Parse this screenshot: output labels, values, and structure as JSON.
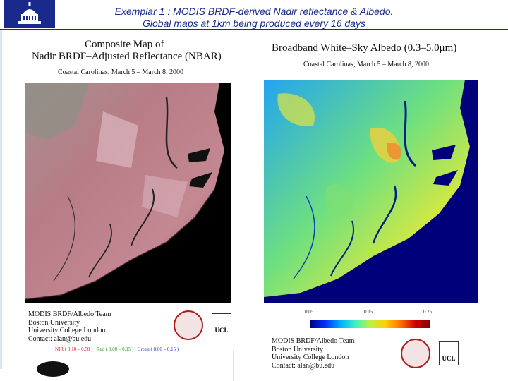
{
  "slide": {
    "title_line1": "Exemplar 1 : MODIS BRDF-derived Nadir reflectance & Albedo.",
    "title_line2": "Global maps at 1km being produced every 16 days"
  },
  "left_panel": {
    "title_line1": "Composite Map of",
    "title_line2": "Nadir BRDF–Adjusted Reflectance (NBAR)",
    "subtitle": "Coastal Carolinas, March 5 – March 8, 2000",
    "credits": [
      "MODIS BRDF/Albedo Team",
      "Boston University",
      "University College London",
      "Contact: alan@bu.edu"
    ],
    "bands": [
      {
        "label": "NIR ( 0.10 – 0.50 )",
        "color": "#d02020"
      },
      {
        "label": "Red ( 0.00 – 0.15 )",
        "color": "#2a9a2a"
      },
      {
        "label": "Green ( 0.00 – 0.15 )",
        "color": "#2a40c0"
      }
    ],
    "ucl_label": "UCL"
  },
  "right_panel": {
    "title": "Broadband White–Sky Albedo (0.3–5.0μm)",
    "subtitle": "Coastal Carolinas, March 5 – March 8, 2000",
    "colorbar_ticks": [
      "0.05",
      "0.15",
      "0.25"
    ],
    "credits": [
      "MODIS BRDF/Albedo Team",
      "Boston University",
      "University College London",
      "Contact: alan@bu.edu"
    ],
    "ucl_label": "UCL"
  },
  "colors": {
    "title_blue": "#1a2a8c",
    "ocean_navy": "#00007a",
    "nbar_land": "#b5757f"
  }
}
